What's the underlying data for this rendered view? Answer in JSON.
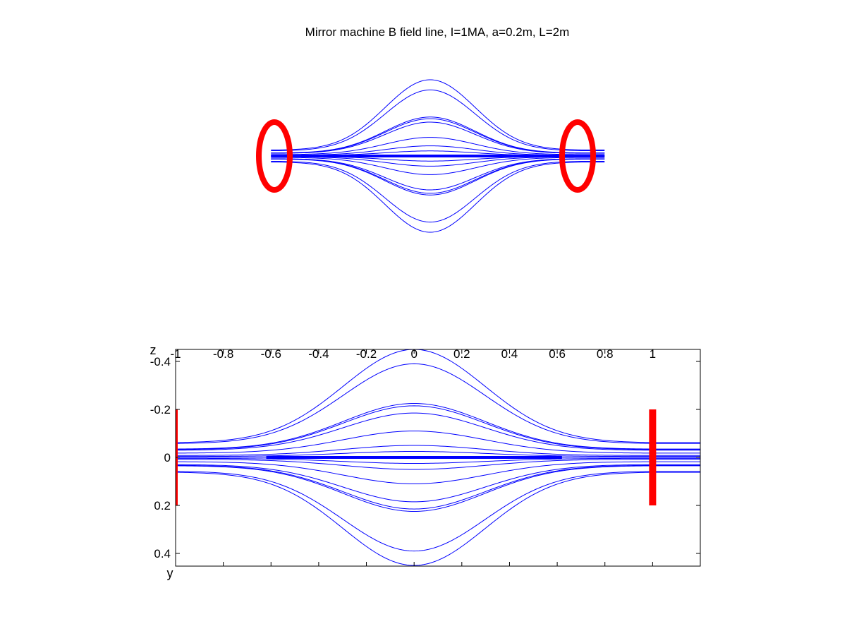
{
  "title": "Mirror machine B field line, I=1MA, a=0.2m, L=2m",
  "colors": {
    "field_line": "#0000ff",
    "coil": "#ff0000",
    "axes": "#000000"
  },
  "chart_data": [
    {
      "type": "line",
      "panel": "3d-view",
      "title": "Mirror machine B field line, I=1MA, a=0.2m, L=2m",
      "coils": [
        {
          "x": -1,
          "radius": 0.2
        },
        {
          "x": 1,
          "radius": 0.2
        }
      ],
      "field_line_offsets": [
        -0.45,
        -0.39,
        -0.23,
        -0.22,
        -0.2,
        -0.11,
        -0.06,
        -0.03,
        0,
        0.03,
        0.06,
        0.11,
        0.2,
        0.22,
        0.23,
        0.39,
        0.45
      ],
      "axes_visible": false
    },
    {
      "type": "line",
      "panel": "side-view",
      "xlabel": "z",
      "ylabel": "y",
      "xlim": [
        -1,
        1.2
      ],
      "ylim": [
        -0.45,
        0.45
      ],
      "y_reversed": true,
      "x_ticks": [
        -1,
        -0.8,
        -0.6,
        -0.4,
        -0.2,
        0,
        0.2,
        0.4,
        0.6,
        0.8,
        1
      ],
      "x_tick_labels": [
        "-1",
        "-0.8",
        "-0.6",
        "-0.4",
        "-0.2",
        "0",
        "0.2",
        "0.4",
        "0.6",
        "0.8",
        "1"
      ],
      "y_ticks": [
        -0.4,
        -0.2,
        0,
        0.2,
        0.4
      ],
      "y_tick_labels": [
        "-0.4",
        "-0.2",
        "0",
        "0.2",
        "0.4"
      ],
      "coils": [
        {
          "z": -1,
          "y_from": -0.2,
          "y_to": 0.2
        },
        {
          "z": 1,
          "y_from": -0.2,
          "y_to": 0.2
        }
      ],
      "field_lines": [
        {
          "edge_y": -0.062,
          "center_y": -0.45
        },
        {
          "edge_y": -0.058,
          "center_y": -0.39
        },
        {
          "edge_y": -0.035,
          "center_y": -0.225
        },
        {
          "edge_y": -0.033,
          "center_y": -0.215
        },
        {
          "edge_y": -0.03,
          "center_y": -0.185
        },
        {
          "edge_y": -0.018,
          "center_y": -0.11
        },
        {
          "edge_y": -0.008,
          "center_y": -0.05
        },
        {
          "edge_y": -0.004,
          "center_y": -0.025
        },
        {
          "edge_y": 0.0,
          "center_y": 0.0
        },
        {
          "edge_y": 0.004,
          "center_y": 0.025
        },
        {
          "edge_y": 0.008,
          "center_y": 0.05
        },
        {
          "edge_y": 0.018,
          "center_y": 0.11
        },
        {
          "edge_y": 0.03,
          "center_y": 0.185
        },
        {
          "edge_y": 0.033,
          "center_y": 0.215
        },
        {
          "edge_y": 0.035,
          "center_y": 0.225
        },
        {
          "edge_y": 0.058,
          "center_y": 0.39
        },
        {
          "edge_y": 0.062,
          "center_y": 0.45
        }
      ]
    }
  ]
}
